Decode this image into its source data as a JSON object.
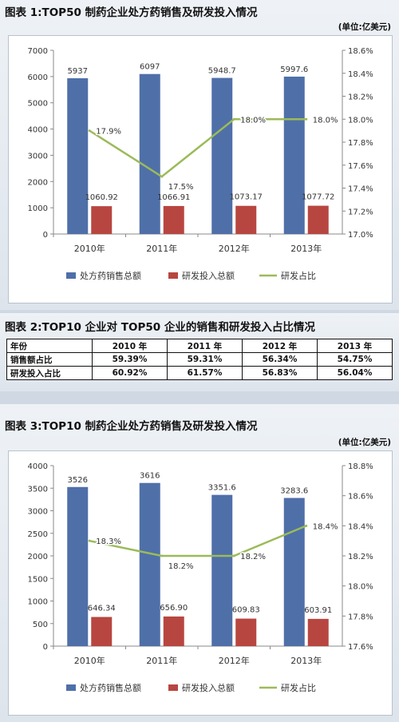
{
  "section1": {
    "title": "图表 1:TOP50 制药企业处方药销售及研发投入情况",
    "unit": "(单位:亿美元)"
  },
  "section2": {
    "title": "图表 2:TOP10 企业对 TOP50 企业的销售和研发投入占比情况",
    "header": [
      "年份",
      "2010 年",
      "2011 年",
      "2012 年",
      "2013 年"
    ],
    "rows": [
      {
        "label": "销售额占比",
        "values": [
          "59.39%",
          "59.31%",
          "56.34%",
          "54.75%"
        ]
      },
      {
        "label": "研发投入占比",
        "values": [
          "60.92%",
          "61.57%",
          "56.83%",
          "56.04%"
        ]
      }
    ]
  },
  "section3": {
    "title": "图表 3:TOP10 制药企业处方药销售及研发投入情况",
    "unit": "(单位:亿美元)"
  },
  "colors": {
    "sales": "#4f6fa8",
    "rd": "#b84640",
    "ratio": "#9bbb59"
  },
  "chart_data": [
    {
      "type": "bar",
      "categories": [
        "2010年",
        "2011年",
        "2012年",
        "2013年"
      ],
      "series": [
        {
          "name": "处方药销售总额",
          "values": [
            5937,
            6097,
            5948.7,
            5997.6
          ],
          "labels": [
            "5937",
            "6097",
            "5948.7",
            "5997.6"
          ],
          "axis": "left"
        },
        {
          "name": "研发投入总额",
          "values": [
            1060.92,
            1066.91,
            1073.17,
            1077.72
          ],
          "labels": [
            "1060.92",
            "1066.91",
            "1073.17",
            "1077.72"
          ],
          "axis": "left"
        },
        {
          "name": "研发占比",
          "type": "line",
          "values": [
            17.9,
            17.5,
            18.0,
            18.0
          ],
          "labels": [
            "17.9%",
            "17.5%",
            "18.0%",
            "18.0%"
          ],
          "axis": "right"
        }
      ],
      "ylim": [
        0,
        7000
      ],
      "yticks": [
        0,
        1000,
        2000,
        3000,
        4000,
        5000,
        6000,
        7000
      ],
      "ytick_labels": [
        "0",
        "1000",
        "2000",
        "3000",
        "4000",
        "5000",
        "6000",
        "7000"
      ],
      "y2lim": [
        17.0,
        18.6
      ],
      "y2ticks": [
        17.0,
        17.2,
        17.4,
        17.6,
        17.8,
        18.0,
        18.2,
        18.4,
        18.6
      ],
      "y2tick_labels": [
        "17.0%",
        "17.2%",
        "17.4%",
        "17.6%",
        "17.8%",
        "18.0%",
        "18.2%",
        "18.4%",
        "18.6%"
      ],
      "legend": "bottom",
      "grid": false
    },
    {
      "type": "bar",
      "categories": [
        "2010年",
        "2011年",
        "2012年",
        "2013年"
      ],
      "series": [
        {
          "name": "处方药销售总额",
          "values": [
            3526,
            3616,
            3351.6,
            3283.6
          ],
          "labels": [
            "3526",
            "3616",
            "3351.6",
            "3283.6"
          ],
          "axis": "left"
        },
        {
          "name": "研发投入总额",
          "values": [
            646.34,
            656.9,
            609.83,
            603.91
          ],
          "labels": [
            "646.34",
            "656.90",
            "609.83",
            "603.91"
          ],
          "axis": "left"
        },
        {
          "name": "研发占比",
          "type": "line",
          "values": [
            18.3,
            18.2,
            18.2,
            18.4
          ],
          "labels": [
            "18.3%",
            "18.2%",
            "18.2%",
            "18.4%"
          ],
          "axis": "right"
        }
      ],
      "ylim": [
        0,
        4000
      ],
      "yticks": [
        0,
        500,
        1000,
        1500,
        2000,
        2500,
        3000,
        3500,
        4000
      ],
      "ytick_labels": [
        "0",
        "500",
        "1000",
        "1500",
        "2000",
        "2500",
        "3000",
        "3500",
        "4000"
      ],
      "y2lim": [
        17.6,
        18.8
      ],
      "y2ticks": [
        17.6,
        17.8,
        18.0,
        18.2,
        18.4,
        18.6,
        18.8
      ],
      "y2tick_labels": [
        "17.6%",
        "17.8%",
        "18.0%",
        "18.2%",
        "18.4%",
        "18.6%",
        "18.8%"
      ],
      "legend": "bottom",
      "grid": false
    }
  ]
}
